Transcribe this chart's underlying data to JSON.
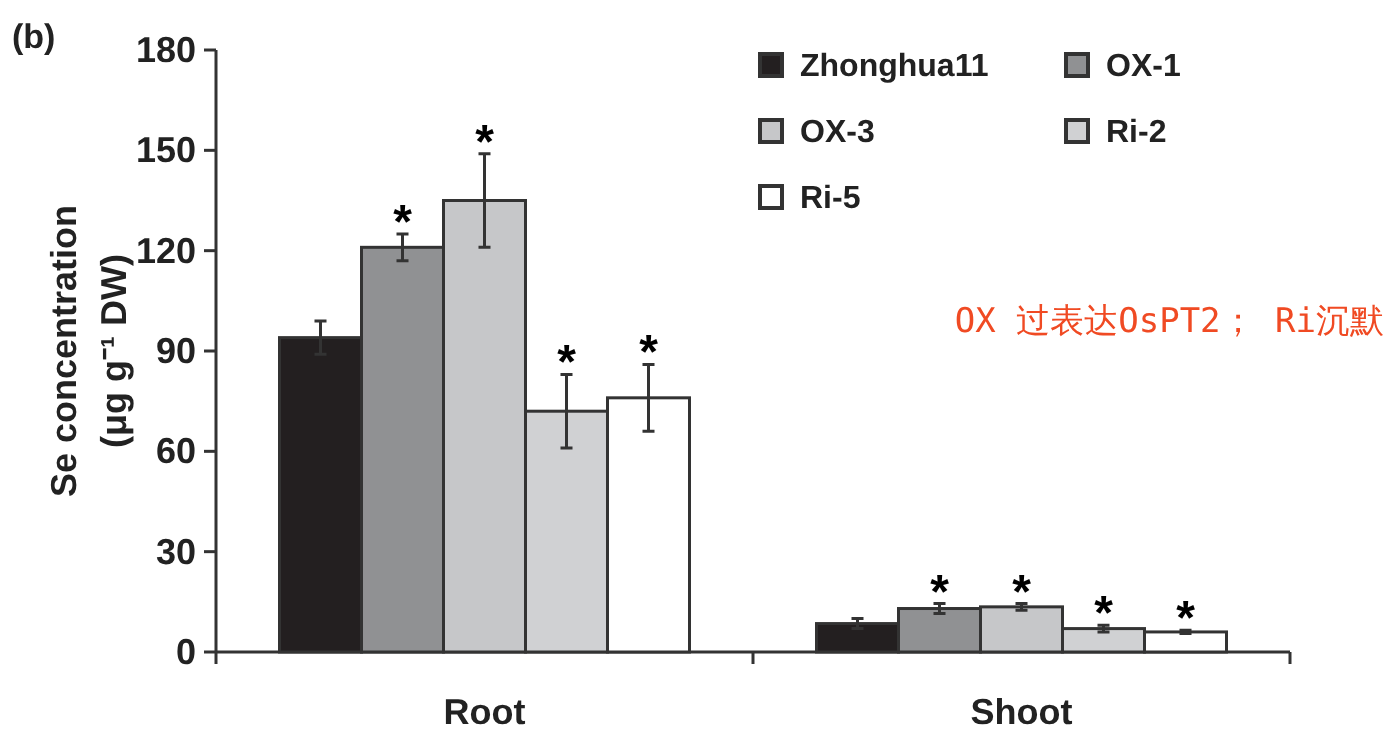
{
  "chart_data": {
    "type": "bar",
    "ylabel": "Se concentration\n(μg g⁻¹ DW)",
    "categories": [
      "Root",
      "Shoot"
    ],
    "ylim": [
      0,
      180
    ],
    "yticks": [
      0,
      30,
      60,
      90,
      120,
      150,
      180
    ],
    "legend": "top right",
    "annotations": [
      "(b)",
      "OX 过表达OsPT2； Ri沉默"
    ],
    "series": [
      {
        "name": "Zhonghua11",
        "color": "#231f20",
        "values": [
          94,
          8.5
        ],
        "errors": [
          5,
          1.5
        ],
        "value_labels": [
          null,
          null
        ]
      },
      {
        "name": "OX-1",
        "color": "#909193",
        "values": [
          121,
          13
        ],
        "errors": [
          4,
          1.5
        ],
        "value_labels": [
          "*",
          "*"
        ]
      },
      {
        "name": "OX-3",
        "color": "#c6c7c9",
        "values": [
          135,
          13.5
        ],
        "errors": [
          14,
          1
        ],
        "value_labels": [
          "*",
          "*"
        ]
      },
      {
        "name": "Ri-2",
        "color": "#d0d1d3",
        "values": [
          72,
          7
        ],
        "errors": [
          11,
          1
        ],
        "value_labels": [
          "*",
          "*"
        ]
      },
      {
        "name": "Ri-5",
        "color": "#ffffff",
        "values": [
          76,
          6
        ],
        "errors": [
          10,
          0.5
        ],
        "value_labels": [
          "*",
          "*"
        ]
      }
    ]
  }
}
